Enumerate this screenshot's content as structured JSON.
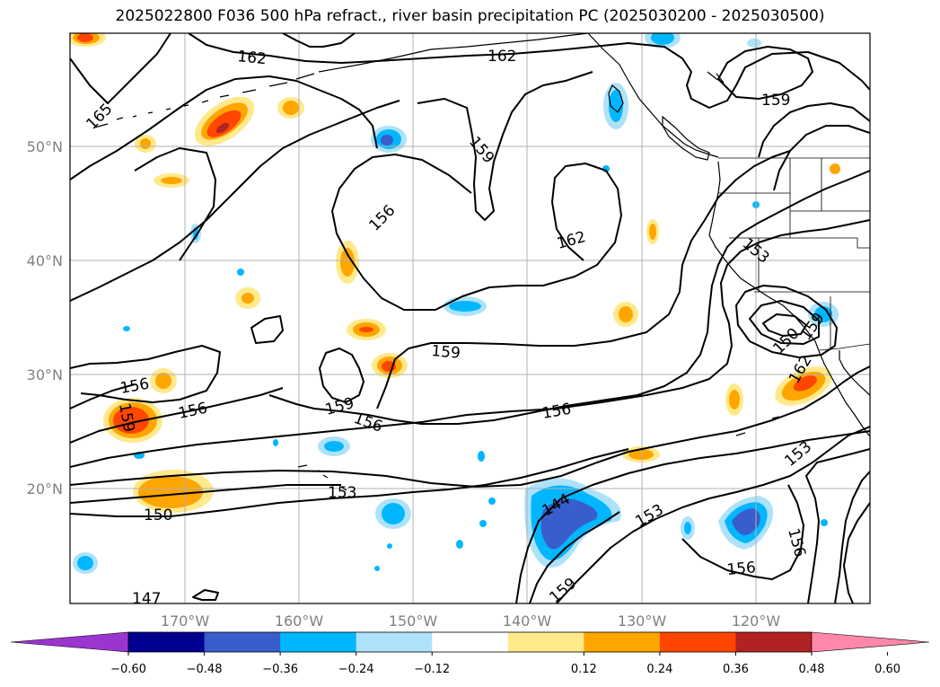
{
  "title": "2025022800 F036 500 hPa refract., river basin precipitation PC (2025030200 - 2025030500)",
  "axes": {
    "x_ticks": [
      "170°W",
      "160°W",
      "150°W",
      "140°W",
      "130°W",
      "120°W"
    ],
    "y_ticks": [
      "50°N",
      "40°N",
      "30°N",
      "20°N"
    ]
  },
  "contour_labels": [
    "162",
    "162",
    "165",
    "159",
    "159",
    "156",
    "162",
    "153",
    "159",
    "156",
    "159",
    "156",
    "159",
    "156",
    "156",
    "153",
    "150",
    "147",
    "144",
    "153",
    "159",
    "156",
    "153",
    "156",
    "162",
    "150",
    "159",
    "156"
  ],
  "colorbar": {
    "ticks": [
      "−0.60",
      "−0.48",
      "−0.36",
      "−0.24",
      "−0.12",
      "0.12",
      "0.24",
      "0.36",
      "0.48",
      "0.60"
    ],
    "colors": [
      "#9a35d0",
      "#000090",
      "#3a5dcc",
      "#00b7ff",
      "#ade2fa",
      "#ffffff",
      "#ffe98a",
      "#ffa500",
      "#ff4500",
      "#b22222",
      "#ff88aa"
    ]
  },
  "colors": {
    "grid": "#b0b0b0",
    "contour": "#000000",
    "coast": "#000000"
  }
}
